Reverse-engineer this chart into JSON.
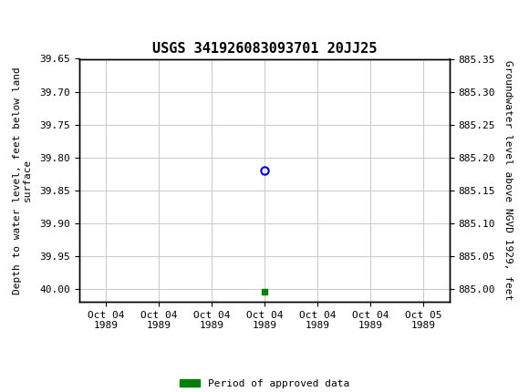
{
  "title": "USGS 341926083093701 20JJ25",
  "ylabel_left": "Depth to water level, feet below land\nsurface",
  "ylabel_right": "Groundwater level above NGVD 1929, feet",
  "ylim_left_top": 39.65,
  "ylim_left_bottom": 40.02,
  "ylim_right_top": 885.35,
  "ylim_right_bottom": 884.98,
  "yticks_left": [
    39.65,
    39.7,
    39.75,
    39.8,
    39.85,
    39.9,
    39.95,
    40.0
  ],
  "yticks_right": [
    885.35,
    885.3,
    885.25,
    885.2,
    885.15,
    885.1,
    885.05,
    885.0
  ],
  "data_point_x": 3,
  "data_point_y": 39.82,
  "data_point_color": "#0000cc",
  "approved_x": 3,
  "approved_y": 40.005,
  "approved_color": "#008000",
  "header_bg_color": "#006633",
  "header_text_color": "#ffffff",
  "plot_bg_color": "#ffffff",
  "grid_color": "#cccccc",
  "legend_label": "Period of approved data",
  "legend_color": "#008000",
  "xtick_positions": [
    0,
    1,
    2,
    3,
    4,
    5,
    6
  ],
  "xtick_labels": [
    "Oct 04\n1989",
    "Oct 04\n1989",
    "Oct 04\n1989",
    "Oct 04\n1989",
    "Oct 04\n1989",
    "Oct 04\n1989",
    "Oct 05\n1989"
  ],
  "xlim": [
    -0.5,
    6.5
  ],
  "font_family": "monospace",
  "title_fontsize": 11,
  "tick_fontsize": 8,
  "ylabel_fontsize": 8
}
